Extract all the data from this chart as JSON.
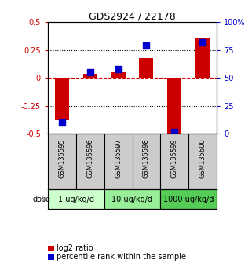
{
  "title": "GDS2924 / 22178",
  "samples": [
    "GSM135595",
    "GSM135596",
    "GSM135597",
    "GSM135598",
    "GSM135599",
    "GSM135600"
  ],
  "log2_ratio": [
    -0.38,
    0.04,
    0.05,
    0.18,
    -0.52,
    0.36
  ],
  "percentile_rank": [
    10,
    55,
    58,
    79,
    2,
    82
  ],
  "left_ylim": [
    -0.5,
    0.5
  ],
  "right_ylim": [
    0,
    100
  ],
  "left_yticks": [
    -0.5,
    -0.25,
    0,
    0.25,
    0.5
  ],
  "right_yticks": [
    0,
    25,
    50,
    75,
    100
  ],
  "left_yticklabels": [
    "-0.5",
    "-0.25",
    "0",
    "0.25",
    "0.5"
  ],
  "right_yticklabels": [
    "0",
    "25",
    "50",
    "75",
    "100%"
  ],
  "hlines_dotted": [
    -0.25,
    0.25
  ],
  "hline_dashed": 0,
  "bar_color": "#cc0000",
  "square_color": "#0000cc",
  "bar_width": 0.5,
  "square_size": 35,
  "dose_groups": [
    {
      "label": "1 ug/kg/d",
      "samples": [
        0,
        1
      ],
      "color": "#ccffcc"
    },
    {
      "label": "10 ug/kg/d",
      "samples": [
        2,
        3
      ],
      "color": "#99ee99"
    },
    {
      "label": "1000 ug/kg/d",
      "samples": [
        4,
        5
      ],
      "color": "#55cc55"
    }
  ],
  "dose_label": "dose",
  "legend_bar_label": "log2 ratio",
  "legend_square_label": "percentile rank within the sample",
  "left_axis_color": "#cc0000",
  "right_axis_color": "#0000cc",
  "bg_color": "#ffffff",
  "plot_bg_color": "#ffffff",
  "sample_bg_color": "#cccccc",
  "title_fontsize": 9,
  "tick_fontsize": 7,
  "sample_fontsize": 6,
  "dose_fontsize": 7,
  "legend_fontsize": 7
}
